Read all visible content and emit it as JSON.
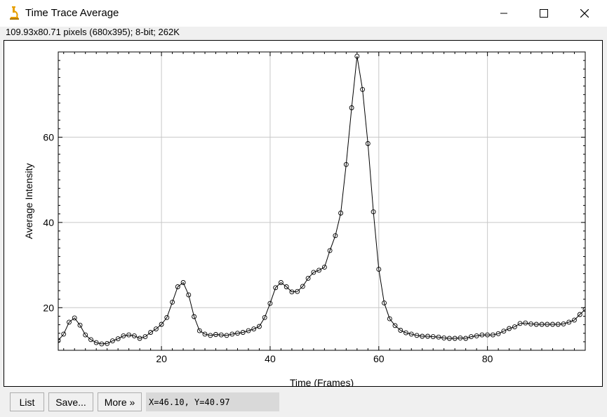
{
  "window": {
    "title": "Time Trace Average",
    "icon": "microscope-icon",
    "info": "109.93x80.71 pixels (680x395); 8-bit; 262K"
  },
  "controls": {
    "minimize": "minimize-icon",
    "maximize": "maximize-icon",
    "close": "close-icon"
  },
  "buttons": {
    "list": "List",
    "save": "Save...",
    "more": "More »"
  },
  "status": {
    "coords": "X=46.10,  Y=40.97"
  },
  "colors": {
    "line": "#000000",
    "grid": "#c8c8c8",
    "icon": "#e8a000"
  },
  "chart_data": {
    "type": "line",
    "xlabel": "Time (Frames)",
    "ylabel": "Average Intensity",
    "xlim": [
      1,
      98
    ],
    "ylim": [
      10,
      80
    ],
    "xticks": [
      20,
      40,
      60,
      80
    ],
    "yticks": [
      20,
      40,
      60
    ],
    "grid": true,
    "markers": "open-circle",
    "x": [
      1,
      2,
      3,
      4,
      5,
      6,
      7,
      8,
      9,
      10,
      11,
      12,
      13,
      14,
      15,
      16,
      17,
      18,
      19,
      20,
      21,
      22,
      23,
      24,
      25,
      26,
      27,
      28,
      29,
      30,
      31,
      32,
      33,
      34,
      35,
      36,
      37,
      38,
      39,
      40,
      41,
      42,
      43,
      44,
      45,
      46,
      47,
      48,
      49,
      50,
      51,
      52,
      53,
      54,
      55,
      56,
      57,
      58,
      59,
      60,
      61,
      62,
      63,
      64,
      65,
      66,
      67,
      68,
      69,
      70,
      71,
      72,
      73,
      74,
      75,
      76,
      77,
      78,
      79,
      80,
      81,
      82,
      83,
      84,
      85,
      86,
      87,
      88,
      89,
      90,
      91,
      92,
      93,
      94,
      95,
      96,
      97,
      98
    ],
    "y": [
      12.3,
      13.8,
      16.6,
      17.6,
      15.9,
      13.6,
      12.5,
      11.8,
      11.5,
      11.6,
      12.2,
      12.7,
      13.4,
      13.6,
      13.4,
      12.8,
      13.2,
      14.2,
      15.0,
      16.1,
      17.7,
      21.3,
      24.9,
      25.9,
      23.0,
      17.9,
      14.6,
      13.8,
      13.5,
      13.7,
      13.6,
      13.5,
      13.8,
      14.0,
      14.2,
      14.6,
      15.0,
      15.6,
      17.7,
      21.0,
      24.7,
      25.9,
      24.9,
      23.7,
      23.8,
      25.0,
      26.9,
      28.3,
      28.8,
      29.5,
      33.4,
      36.9,
      42.2,
      53.6,
      66.9,
      79.0,
      71.2,
      58.5,
      42.5,
      29.0,
      21.1,
      17.4,
      15.8,
      14.7,
      14.1,
      13.8,
      13.5,
      13.3,
      13.3,
      13.2,
      13.1,
      12.9,
      12.8,
      12.8,
      12.9,
      12.8,
      13.2,
      13.4,
      13.6,
      13.6,
      13.6,
      13.9,
      14.5,
      15.1,
      15.5,
      16.3,
      16.4,
      16.2,
      16.1,
      16.1,
      16.1,
      16.1,
      16.1,
      16.2,
      16.6,
      17.1,
      18.4,
      19.6
    ]
  }
}
